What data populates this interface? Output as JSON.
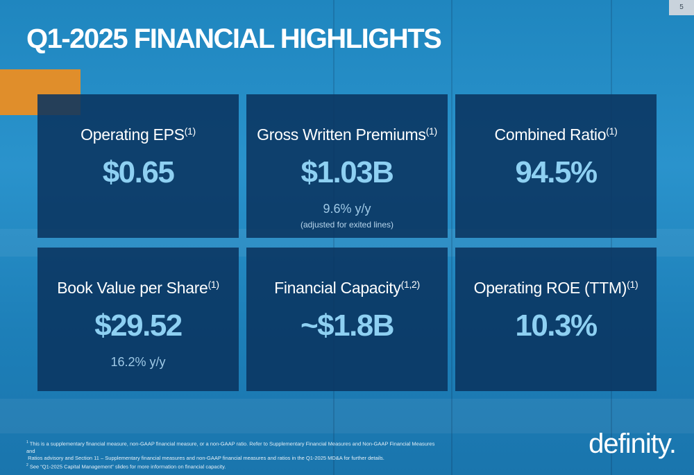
{
  "page_number": "5",
  "title": "Q1-2025 FINANCIAL HIGHLIGHTS",
  "cards": [
    {
      "label": "Operating EPS",
      "sup": "(1)",
      "value": "$0.65",
      "sub": "",
      "note": ""
    },
    {
      "label": "Gross Written Premiums",
      "sup": "(1)",
      "value": "$1.03B",
      "sub": "9.6% y/y",
      "note": "(adjusted for exited lines)"
    },
    {
      "label": "Combined Ratio",
      "sup": "(1)",
      "value": "94.5%",
      "sub": "",
      "note": ""
    },
    {
      "label": "Book Value per Share",
      "sup": "(1)",
      "value": "$29.52",
      "sub": "16.2% y/y",
      "note": ""
    },
    {
      "label": "Financial Capacity",
      "sup": "(1,2)",
      "value": "~$1.8B",
      "sub": "",
      "note": ""
    },
    {
      "label": "Operating ROE (TTM)",
      "sup": "(1)",
      "value": "10.3%",
      "sub": "",
      "note": ""
    }
  ],
  "footnotes": {
    "n1_marker": "1",
    "n1_line1": "This is a supplementary financial measure, non-GAAP financial measure, or a non-GAAP ratio. Refer to Supplementary Financial Measures and Non-GAAP Financial Measures and",
    "n1_line2": "Ratios advisory and Section 11 – Supplementary financial measures and non-GAAP financial measures and ratios in the Q1-2025 MD&A for further details.",
    "n2_marker": "2",
    "n2_line1": "See “Q1-2025 Capital Management” slides for more information on financial capacity."
  },
  "logo_text": "definity.",
  "colors": {
    "background": "#1f86bf",
    "card": "#0a3460",
    "value": "#8ed0f2",
    "accent": "#e08e2b"
  }
}
